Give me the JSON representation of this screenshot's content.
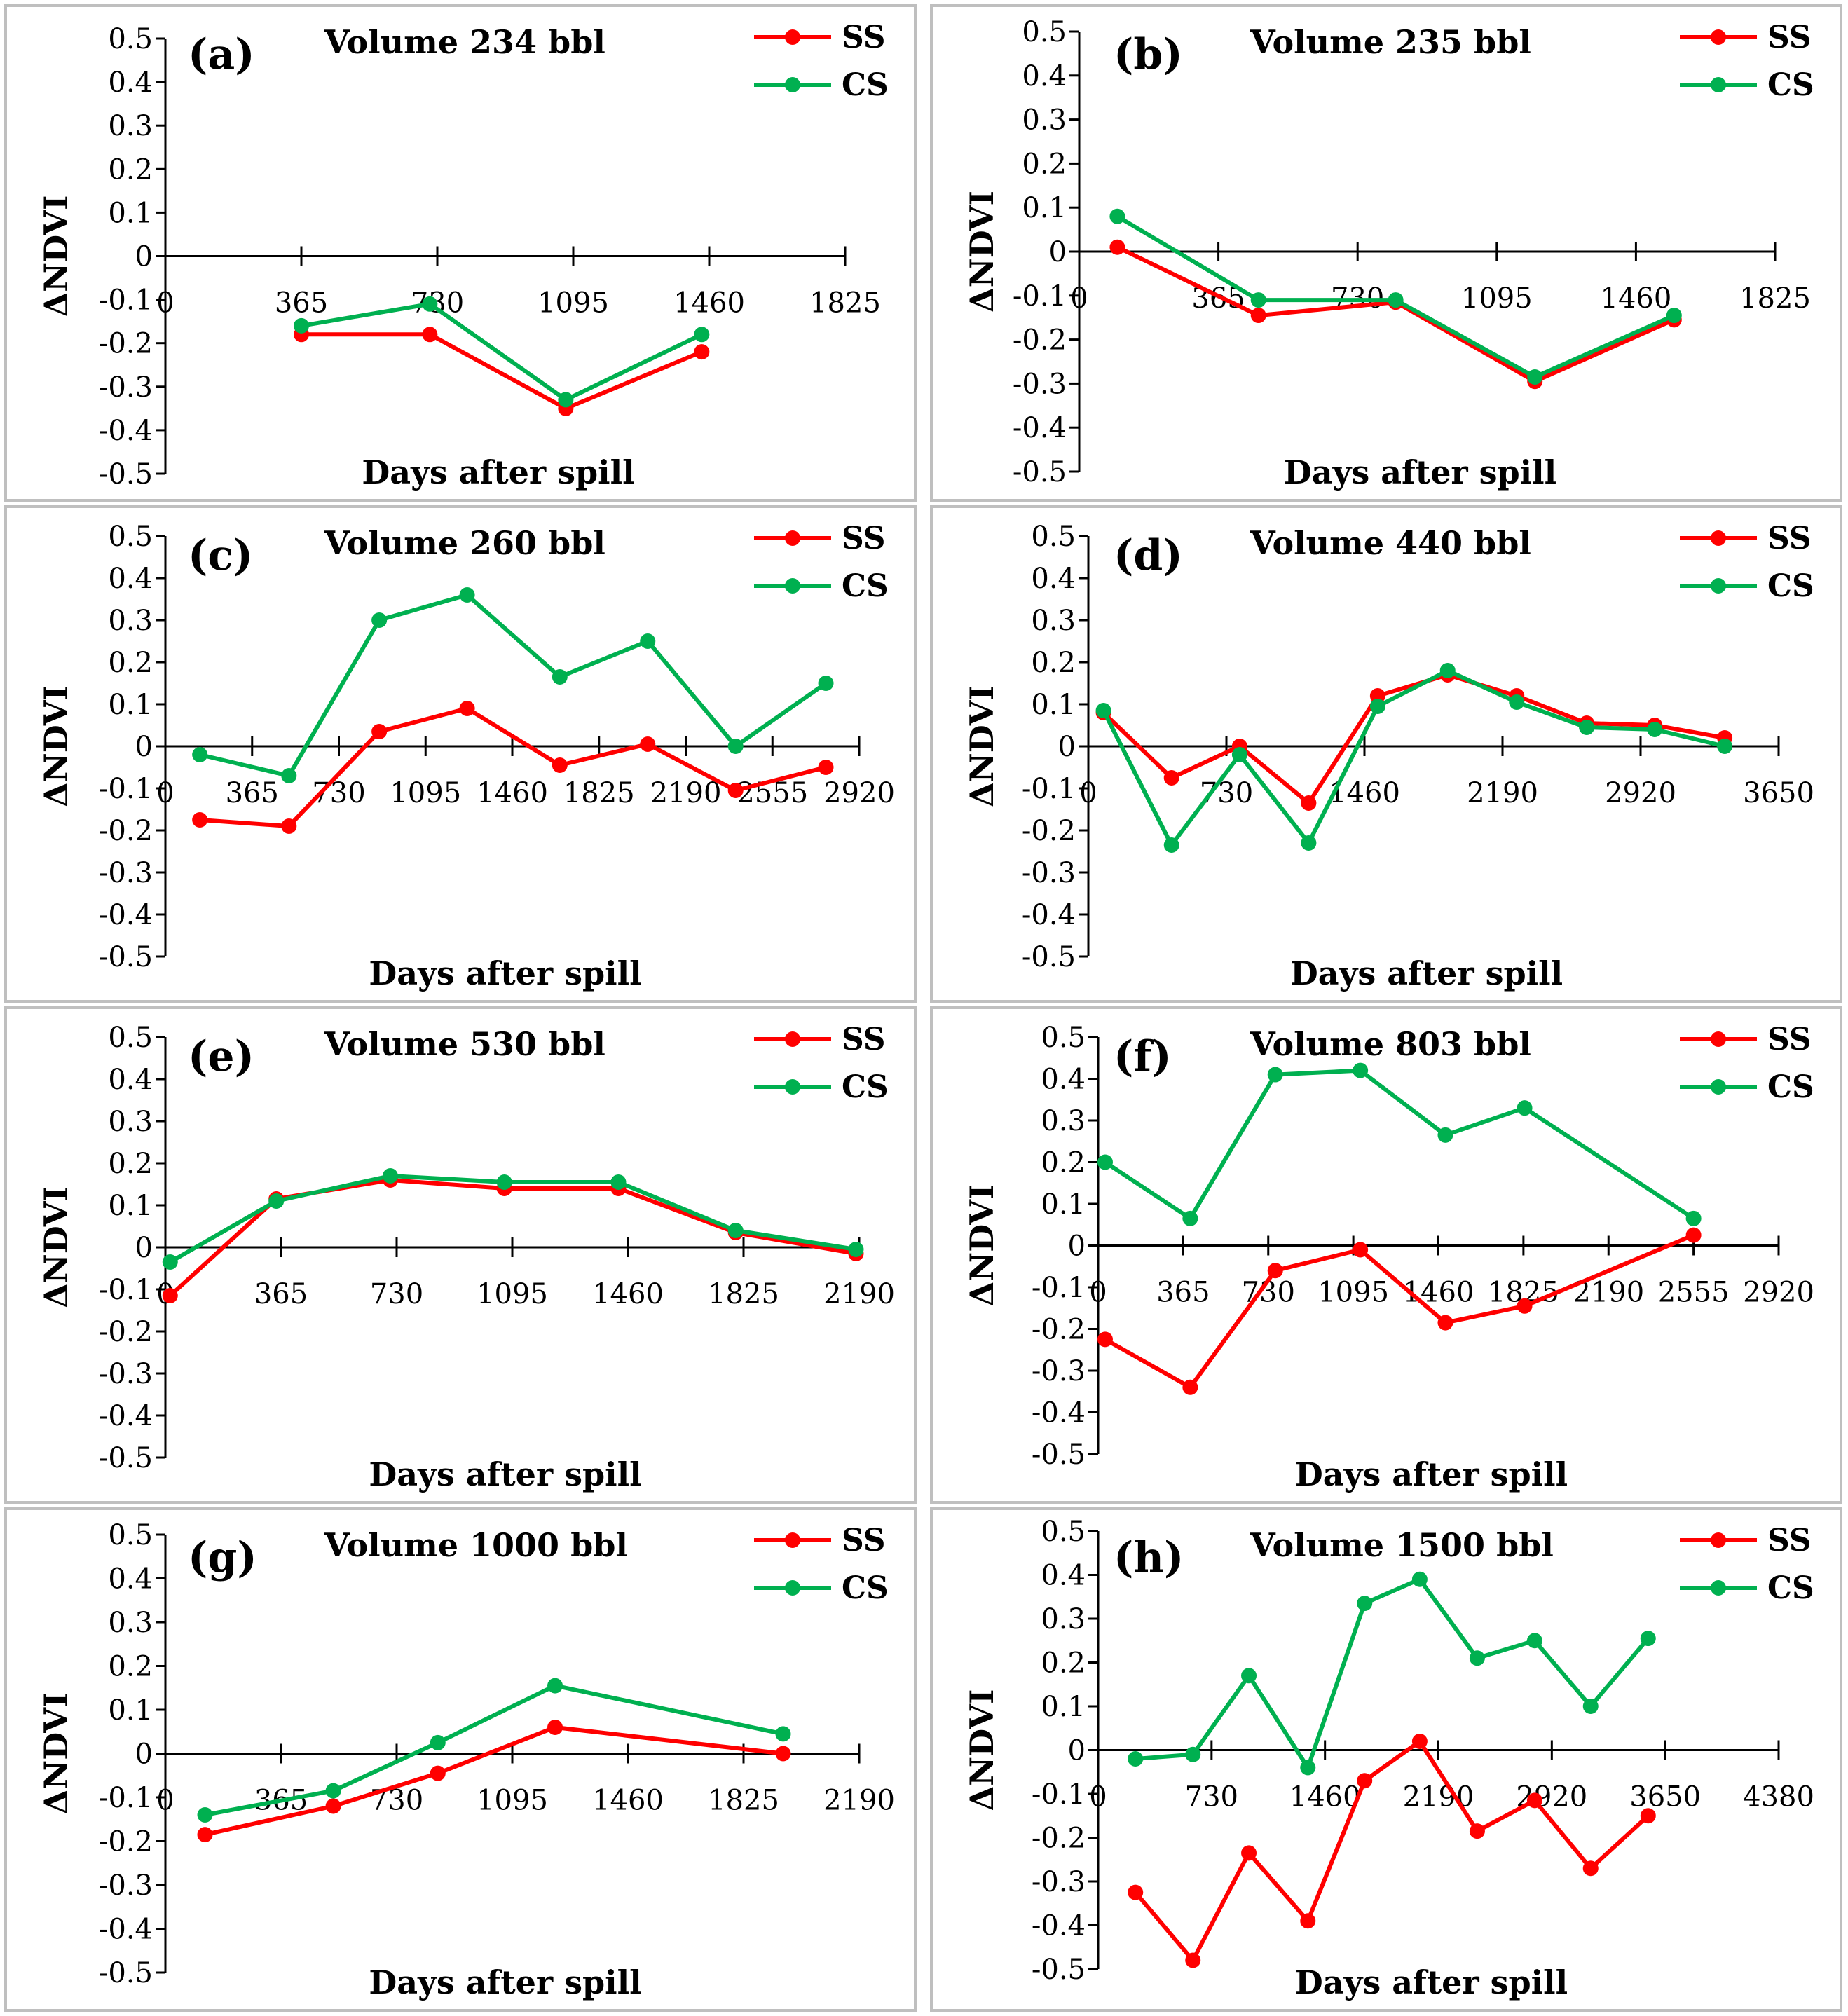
{
  "chart_data": [
    {
      "type": "line",
      "label": "(a)",
      "title": "Volume 234 bbl",
      "xlabel": "Days after spill",
      "ylabel": "ΔNDVI",
      "xlim": [
        0,
        1825
      ],
      "xticks": [
        0,
        365,
        730,
        1095,
        1460,
        1825
      ],
      "ylim": [
        -0.5,
        0.5
      ],
      "yticks": [
        0.5,
        0.4,
        0.3,
        0.2,
        0.1,
        0,
        -0.1,
        -0.2,
        -0.3,
        -0.4,
        -0.5
      ],
      "legend": "top-right",
      "series": [
        {
          "name": "SS",
          "color": "#ff0000",
          "x": [
            365,
            710,
            1075,
            1440
          ],
          "y": [
            -0.18,
            -0.18,
            -0.35,
            -0.22
          ]
        },
        {
          "name": "CS",
          "color": "#00b050",
          "x": [
            365,
            710,
            1075,
            1440
          ],
          "y": [
            -0.16,
            -0.11,
            -0.33,
            -0.18
          ]
        }
      ]
    },
    {
      "type": "line",
      "label": "(b)",
      "title": "Volume 235 bbl",
      "xlabel": "Days after spill",
      "ylabel": "ΔNDVI",
      "xlim": [
        0,
        1825
      ],
      "xticks": [
        0,
        365,
        730,
        1095,
        1460,
        1825
      ],
      "ylim": [
        -0.5,
        0.5
      ],
      "yticks": [
        0.5,
        0.4,
        0.3,
        0.2,
        0.1,
        0,
        -0.1,
        -0.2,
        -0.3,
        -0.4,
        -0.5
      ],
      "legend": "top-right",
      "series": [
        {
          "name": "SS",
          "color": "#ff0000",
          "x": [
            100,
            470,
            830,
            1195,
            1560
          ],
          "y": [
            0.01,
            -0.145,
            -0.115,
            -0.295,
            -0.155
          ]
        },
        {
          "name": "CS",
          "color": "#00b050",
          "x": [
            100,
            470,
            830,
            1195,
            1560
          ],
          "y": [
            0.08,
            -0.11,
            -0.11,
            -0.285,
            -0.145
          ]
        }
      ]
    },
    {
      "type": "line",
      "label": "(c)",
      "title": "Volume 260 bbl",
      "xlabel": "Days after spill",
      "ylabel": "ΔNDVI",
      "xlim": [
        0,
        2920
      ],
      "xticks": [
        0,
        365,
        730,
        1095,
        1460,
        1825,
        2190,
        2555,
        2920
      ],
      "ylim": [
        -0.5,
        0.5
      ],
      "yticks": [
        0.5,
        0.4,
        0.3,
        0.2,
        0.1,
        0,
        -0.1,
        -0.2,
        -0.3,
        -0.4,
        -0.5
      ],
      "legend": "top-right",
      "series": [
        {
          "name": "SS",
          "color": "#ff0000",
          "x": [
            145,
            520,
            900,
            1270,
            1660,
            2030,
            2400,
            2780
          ],
          "y": [
            -0.175,
            -0.19,
            0.035,
            0.09,
            -0.045,
            0.005,
            -0.105,
            -0.05
          ]
        },
        {
          "name": "CS",
          "color": "#00b050",
          "x": [
            145,
            520,
            900,
            1270,
            1660,
            2030,
            2400,
            2780
          ],
          "y": [
            -0.02,
            -0.07,
            0.3,
            0.36,
            0.165,
            0.25,
            0.0,
            0.15
          ]
        }
      ]
    },
    {
      "type": "line",
      "label": "(d)",
      "title": "Volume 440 bbl",
      "xlabel": "Days after spill",
      "ylabel": "ΔNDVI",
      "xlim": [
        0,
        3650
      ],
      "xticks": [
        0,
        730,
        1460,
        2190,
        2920,
        3650
      ],
      "ylim": [
        -0.5,
        0.5
      ],
      "yticks": [
        0.5,
        0.4,
        0.3,
        0.2,
        0.1,
        0,
        -0.1,
        -0.2,
        -0.3,
        -0.4,
        -0.5
      ],
      "legend": "top-right",
      "series": [
        {
          "name": "SS",
          "color": "#ff0000",
          "x": [
            80,
            440,
            800,
            1165,
            1530,
            1900,
            2265,
            2635,
            2995,
            3365
          ],
          "y": [
            0.08,
            -0.075,
            0.0,
            -0.135,
            0.12,
            0.17,
            0.12,
            0.055,
            0.05,
            0.02
          ]
        },
        {
          "name": "CS",
          "color": "#00b050",
          "x": [
            80,
            440,
            800,
            1165,
            1530,
            1900,
            2265,
            2635,
            2995,
            3365
          ],
          "y": [
            0.085,
            -0.235,
            -0.02,
            -0.23,
            0.095,
            0.18,
            0.105,
            0.045,
            0.04,
            0.0
          ]
        }
      ]
    },
    {
      "type": "line",
      "label": "(e)",
      "title": "Volume 530 bbl",
      "xlabel": "Days after spill",
      "ylabel": "ΔNDVI",
      "xlim": [
        0,
        2190
      ],
      "xticks": [
        0,
        365,
        730,
        1095,
        1460,
        1825,
        2190
      ],
      "ylim": [
        -0.5,
        0.5
      ],
      "yticks": [
        0.5,
        0.4,
        0.3,
        0.2,
        0.1,
        0,
        -0.1,
        -0.2,
        -0.3,
        -0.4,
        -0.5
      ],
      "legend": "top-right",
      "series": [
        {
          "name": "SS",
          "color": "#ff0000",
          "x": [
            15,
            350,
            710,
            1070,
            1430,
            1800,
            2180
          ],
          "y": [
            -0.115,
            0.115,
            0.16,
            0.14,
            0.14,
            0.035,
            -0.015
          ]
        },
        {
          "name": "CS",
          "color": "#00b050",
          "x": [
            15,
            350,
            710,
            1070,
            1430,
            1800,
            2180
          ],
          "y": [
            -0.035,
            0.11,
            0.17,
            0.155,
            0.155,
            0.04,
            -0.005
          ]
        }
      ]
    },
    {
      "type": "line",
      "label": "(f)",
      "title": "Volume 803 bbl",
      "xlabel": "Days after spill",
      "ylabel": "ΔNDVI",
      "xlim": [
        0,
        2920
      ],
      "xticks": [
        0,
        365,
        730,
        1095,
        1460,
        1825,
        2190,
        2555,
        2920
      ],
      "ylim": [
        -0.5,
        0.5
      ],
      "yticks": [
        0.5,
        0.4,
        0.3,
        0.2,
        0.1,
        0,
        -0.1,
        -0.2,
        -0.3,
        -0.4,
        -0.5
      ],
      "legend": "top-right",
      "series": [
        {
          "name": "SS",
          "color": "#ff0000",
          "x": [
            30,
            395,
            760,
            1125,
            1490,
            1830,
            2555
          ],
          "y": [
            -0.225,
            -0.34,
            -0.06,
            -0.01,
            -0.185,
            -0.145,
            0.025
          ]
        },
        {
          "name": "CS",
          "color": "#00b050",
          "x": [
            30,
            395,
            760,
            1125,
            1490,
            1830,
            2555
          ],
          "y": [
            0.2,
            0.065,
            0.41,
            0.42,
            0.265,
            0.33,
            0.065
          ]
        }
      ]
    },
    {
      "type": "line",
      "label": "(g)",
      "title": "Volume 1000 bbl",
      "xlabel": "Days after spill",
      "ylabel": "ΔNDVI",
      "xlim": [
        0,
        2190
      ],
      "xticks": [
        0,
        365,
        730,
        1095,
        1460,
        1825,
        2190
      ],
      "ylim": [
        -0.5,
        0.5
      ],
      "yticks": [
        0.5,
        0.4,
        0.3,
        0.2,
        0.1,
        0,
        -0.1,
        -0.2,
        -0.3,
        -0.4,
        -0.5
      ],
      "legend": "top-right",
      "series": [
        {
          "name": "SS",
          "color": "#ff0000",
          "x": [
            125,
            530,
            860,
            1230,
            1950
          ],
          "y": [
            -0.185,
            -0.12,
            -0.045,
            0.06,
            0.0
          ]
        },
        {
          "name": "CS",
          "color": "#00b050",
          "x": [
            125,
            530,
            860,
            1230,
            1950
          ],
          "y": [
            -0.14,
            -0.085,
            0.025,
            0.155,
            0.045
          ]
        }
      ]
    },
    {
      "type": "line",
      "label": "(h)",
      "title": "Volume 1500 bbl",
      "xlabel": "Days after spill",
      "ylabel": "ΔNDVI",
      "xlim": [
        0,
        4380
      ],
      "xticks": [
        0,
        730,
        1460,
        2190,
        2920,
        3650,
        4380
      ],
      "ylim": [
        -0.5,
        0.5
      ],
      "yticks": [
        0.5,
        0.4,
        0.3,
        0.2,
        0.1,
        0,
        -0.1,
        -0.2,
        -0.3,
        -0.4,
        -0.5
      ],
      "legend": "top-right",
      "series": [
        {
          "name": "SS",
          "color": "#ff0000",
          "x": [
            240,
            610,
            970,
            1350,
            1715,
            2070,
            2440,
            2810,
            3170,
            3540
          ],
          "y": [
            -0.325,
            -0.48,
            -0.235,
            -0.39,
            -0.07,
            0.02,
            -0.185,
            -0.115,
            -0.27,
            -0.15
          ]
        },
        {
          "name": "CS",
          "color": "#00b050",
          "x": [
            240,
            610,
            970,
            1350,
            1715,
            2070,
            2440,
            2810,
            3170,
            3540
          ],
          "y": [
            -0.02,
            -0.01,
            0.17,
            -0.04,
            0.335,
            0.39,
            0.21,
            0.25,
            0.1,
            0.255
          ]
        }
      ]
    }
  ]
}
